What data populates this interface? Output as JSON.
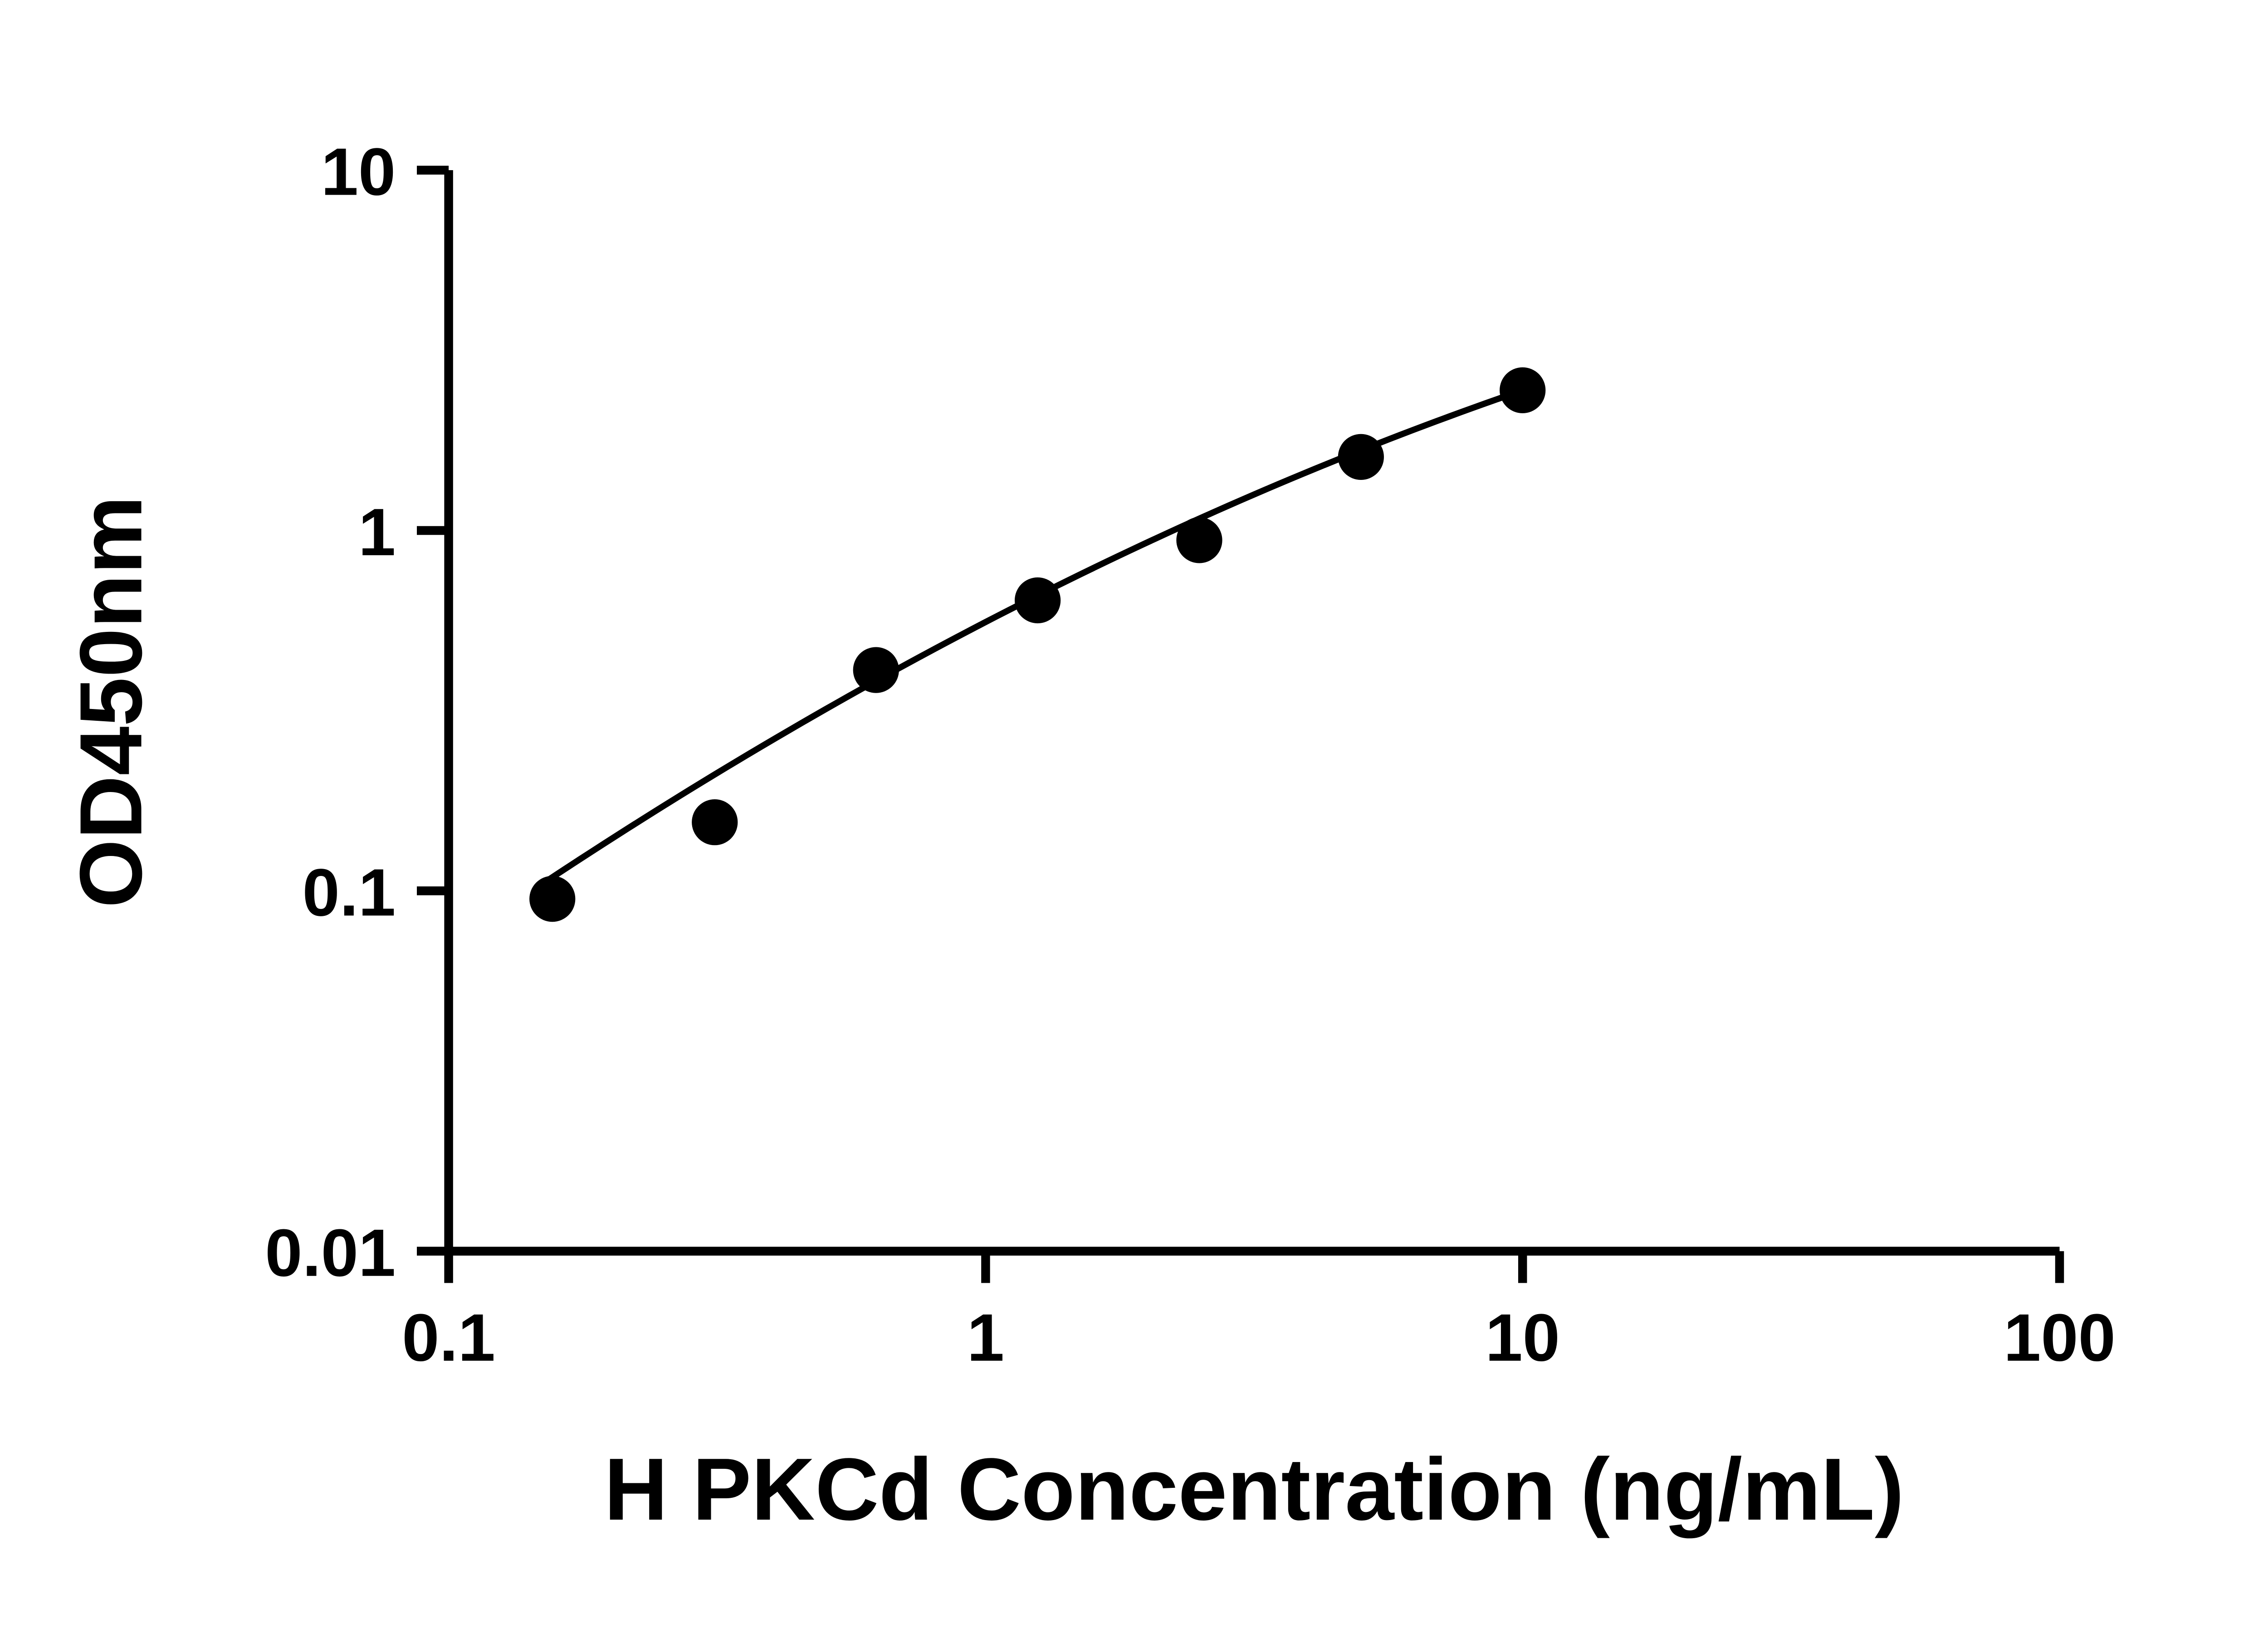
{
  "figure": {
    "background": "#ffffff"
  },
  "chart_data": {
    "type": "scatter",
    "title": "",
    "xlabel": "H PKCd Concentration (ng/mL)",
    "ylabel": "OD450nm",
    "x_scale": "log10",
    "y_scale": "log10",
    "xlim": [
      0.1,
      100
    ],
    "ylim": [
      0.01,
      10
    ],
    "x_ticks": [
      0.1,
      1,
      10,
      100
    ],
    "x_tick_labels": [
      "0.1",
      "1",
      "10",
      "100"
    ],
    "y_ticks": [
      0.01,
      0.1,
      1,
      10
    ],
    "y_tick_labels": [
      "0.01",
      "0.1",
      "1",
      "10"
    ],
    "grid": false,
    "legend": "none",
    "series": [
      {
        "points": [
          {
            "x": 0.156,
            "y": 0.095
          },
          {
            "x": 0.313,
            "y": 0.155
          },
          {
            "x": 0.625,
            "y": 0.41
          },
          {
            "x": 1.25,
            "y": 0.64
          },
          {
            "x": 2.5,
            "y": 0.94
          },
          {
            "x": 5,
            "y": 1.6
          },
          {
            "x": 10,
            "y": 2.45
          }
        ]
      }
    ],
    "fit_curve": {
      "x_start": 0.15,
      "x_end": 10,
      "loglog_quadratic": {
        "a": -0.254,
        "b": 0.773,
        "c": -0.13
      }
    },
    "marker": {
      "shape": "circle",
      "color": "#000000",
      "radius_px": 13
    },
    "line_color": "#000000",
    "axis_color": "#000000"
  }
}
